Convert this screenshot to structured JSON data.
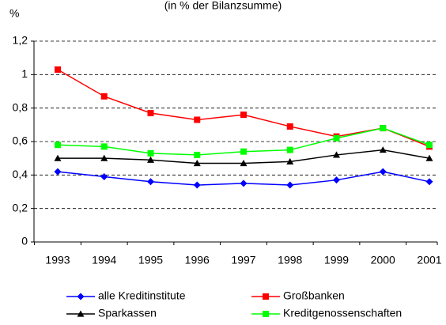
{
  "chart_data": {
    "type": "line",
    "title": "(in % der Bilanzsumme)",
    "y_label": "%",
    "categories": [
      "1993",
      "1994",
      "1995",
      "1996",
      "1997",
      "1998",
      "1999",
      "2000",
      "2001"
    ],
    "series": [
      {
        "name": "alle Kreditinstitute",
        "color": "#0000ff",
        "marker": "diamond",
        "values": [
          0.42,
          0.39,
          0.36,
          0.34,
          0.35,
          0.34,
          0.37,
          0.42,
          0.36
        ]
      },
      {
        "name": "Großbanken",
        "color": "#ff0000",
        "marker": "square",
        "values": [
          1.03,
          0.87,
          0.77,
          0.73,
          0.76,
          0.69,
          0.63,
          0.68,
          0.57
        ]
      },
      {
        "name": "Sparkassen",
        "color": "#000000",
        "marker": "triangle",
        "values": [
          0.5,
          0.5,
          0.49,
          0.47,
          0.47,
          0.48,
          0.52,
          0.55,
          0.5
        ]
      },
      {
        "name": "Kreditgenossenschaften",
        "color": "#00ff00",
        "marker": "square",
        "values": [
          0.58,
          0.57,
          0.53,
          0.52,
          0.54,
          0.55,
          0.62,
          0.68,
          0.58
        ]
      }
    ],
    "ylim": [
      0,
      1.2
    ],
    "yticks": [
      0,
      {
        "value": 0.2,
        "label": "0,2"
      },
      {
        "value": 0.4,
        "label": "0,4"
      },
      {
        "value": 0.6,
        "label": "0,6"
      },
      {
        "value": 0.8,
        "label": "0,8"
      },
      1,
      {
        "value": 1.2,
        "label": "1,2"
      }
    ],
    "grid": true
  }
}
